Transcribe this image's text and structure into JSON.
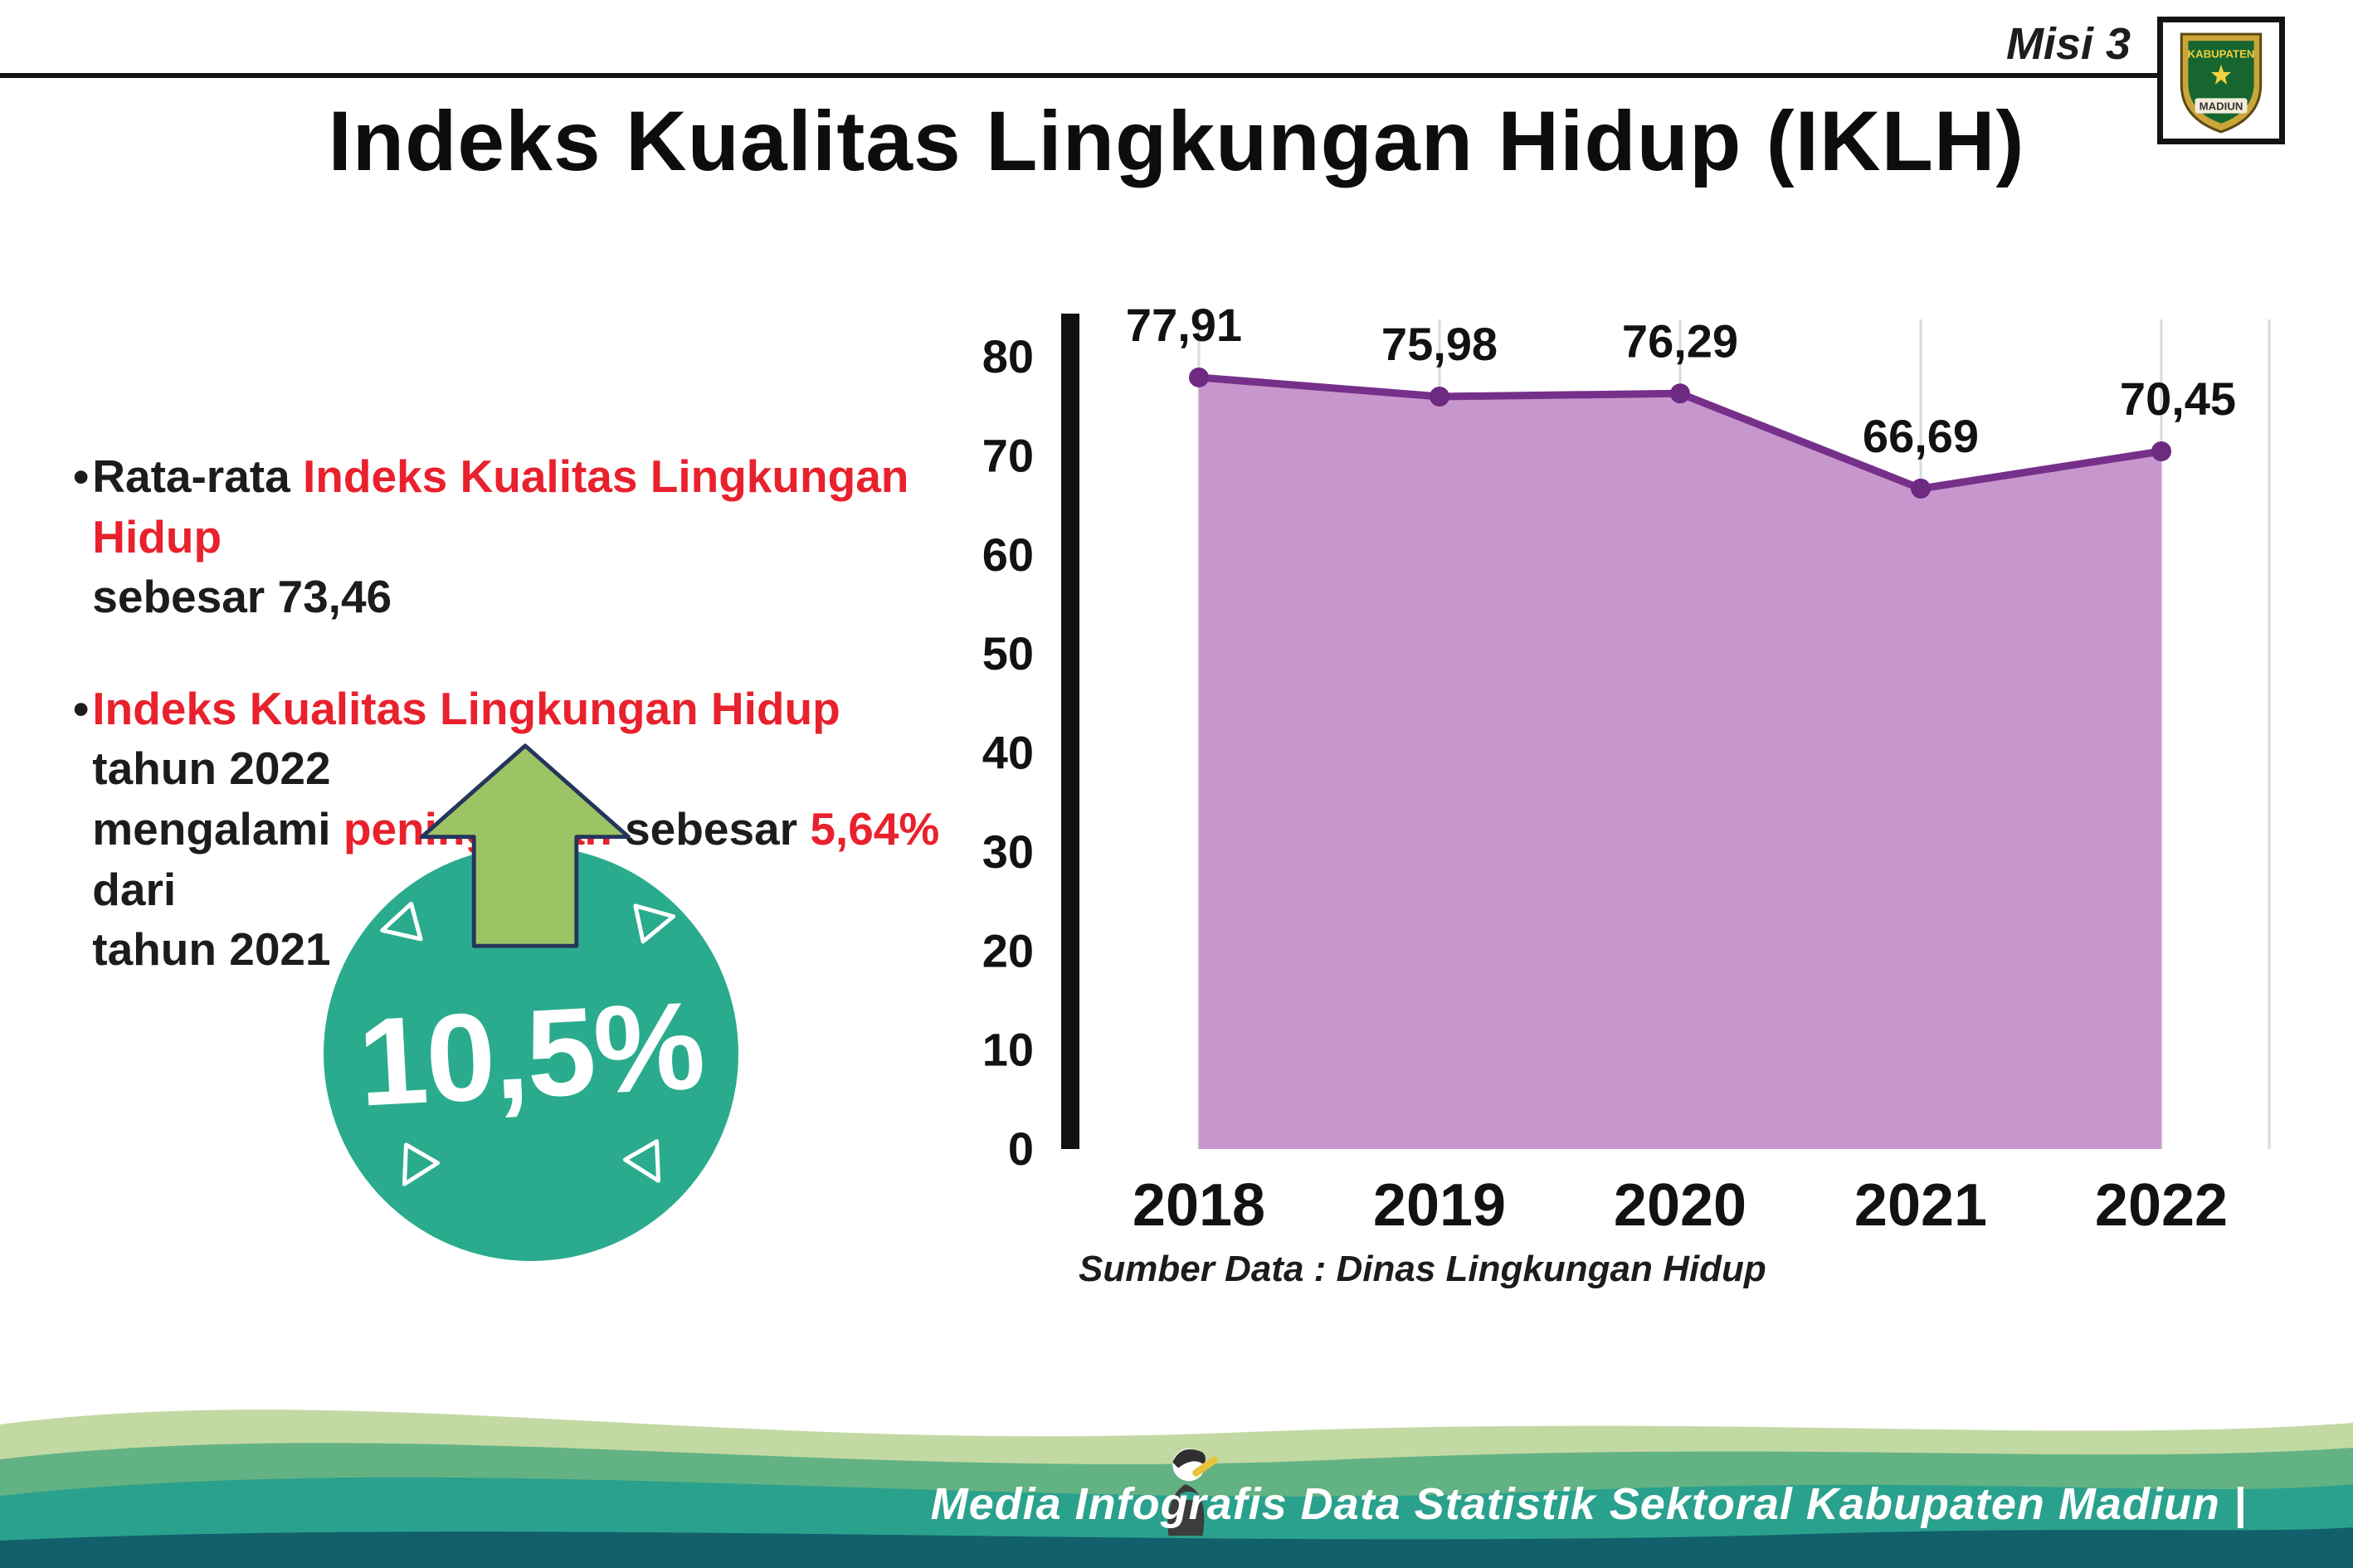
{
  "header": {
    "misi_label": "Misi 3",
    "title": "Indeks Kualitas Lingkungan Hidup (IKLH)",
    "logo": {
      "top_text": "KABUPATEN",
      "bottom_text": "MADIUN"
    }
  },
  "bullets": [
    {
      "marker": "•",
      "segments": [
        {
          "text": "Rata-rata ",
          "color": "#1c1c1c"
        },
        {
          "text": "Indeks Kualitas Lingkungan Hidup",
          "color": "#e8212d"
        },
        {
          "text": "\nsebesar 73,46",
          "color": "#1c1c1c"
        }
      ]
    },
    {
      "marker": "•",
      "segments": [
        {
          "text": "Indeks Kualitas Lingkungan Hidup",
          "color": "#e8212d"
        },
        {
          "text": " tahun 2022\nmengalami ",
          "color": "#1c1c1c"
        },
        {
          "text": "peningkatan",
          "color": "#e8212d"
        },
        {
          "text": " sebesar ",
          "color": "#1c1c1c"
        },
        {
          "text": "5,64%",
          "color": "#e8212d"
        },
        {
          "text": " dari\ntahun 2021",
          "color": "#1c1c1c"
        }
      ]
    }
  ],
  "badge": {
    "value": "10,5%",
    "circle_color": "#2aab8e",
    "arrow_color": "#9cc464",
    "arrow_outline": "#25355c"
  },
  "chart_data": {
    "type": "area",
    "categories": [
      "2018",
      "2019",
      "2020",
      "2021",
      "2022"
    ],
    "values": [
      77.91,
      75.98,
      76.29,
      66.69,
      70.45
    ],
    "value_labels": [
      "77,91",
      "75,98",
      "76,29",
      "66,69",
      "70,45"
    ],
    "ylim": [
      0,
      80
    ],
    "yticks": [
      0,
      10,
      20,
      30,
      40,
      50,
      60,
      70,
      80
    ],
    "xlabel": "",
    "ylabel": "",
    "grid": true,
    "legend": false,
    "line_color": "#76308a",
    "dot_color": "#6d2a80",
    "fill_color": "#c796cd",
    "axis_color": "#111111",
    "grid_color": "#dadada"
  },
  "source_note": "Sumber Data : Dinas Lingkungan Hidup",
  "footer": {
    "caption": "Media Infografis Data Statistik Sektoral Kabupaten Madiun |",
    "band_colors": [
      "#c3d9a4",
      "#63b283",
      "#2aa18d",
      "#11606c"
    ]
  }
}
